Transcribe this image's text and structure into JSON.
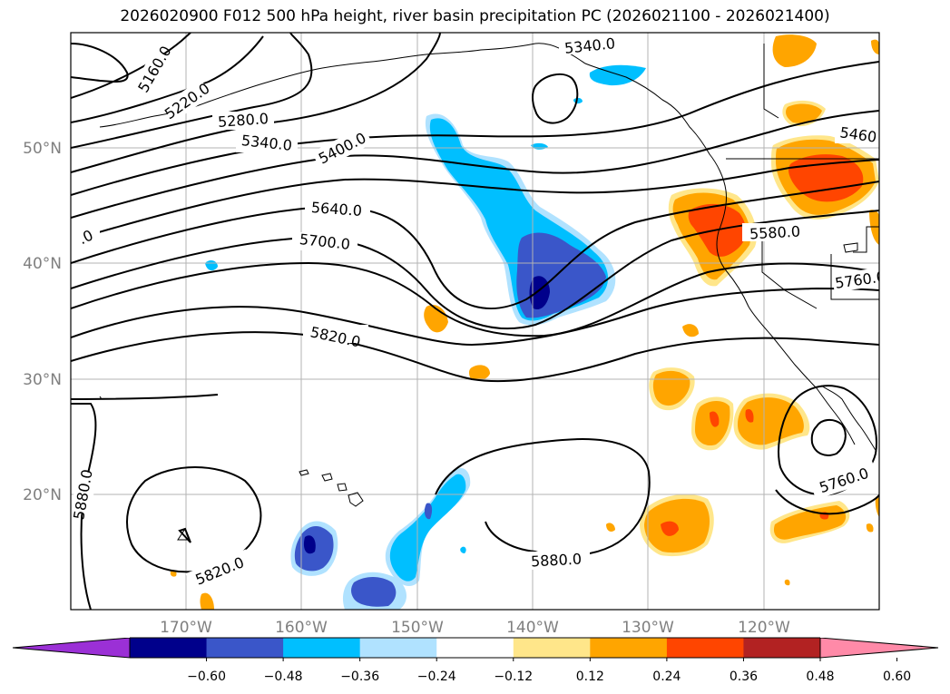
{
  "title": "2026020900 F012 500 hPa height, river basin precipitation PC (2026021100 - 2026021400)",
  "map": {
    "lon_range": [
      -180,
      -110
    ],
    "lat_range": [
      10,
      60
    ],
    "lat_ticks": [
      {
        "value": 20,
        "label": "20°N"
      },
      {
        "value": 30,
        "label": "30°N"
      },
      {
        "value": 40,
        "label": "40°N"
      },
      {
        "value": 50,
        "label": "50°N"
      }
    ],
    "lon_ticks": [
      {
        "value": -170,
        "label": "170°W"
      },
      {
        "value": -160,
        "label": "160°W"
      },
      {
        "value": -150,
        "label": "150°W"
      },
      {
        "value": -140,
        "label": "140°W"
      },
      {
        "value": -130,
        "label": "130°W"
      },
      {
        "value": -120,
        "label": "120°W"
      }
    ],
    "contour_labels": [
      {
        "text": "5160.0"
      },
      {
        "text": "5220.0"
      },
      {
        "text": "5280.0"
      },
      {
        "text": "5340.0"
      },
      {
        "text": "5400.0"
      },
      {
        "text": "5640.0"
      },
      {
        "text": "5700.0"
      },
      {
        "text": "5820.0"
      },
      {
        "text": "5820.0"
      },
      {
        "text": "5880.0"
      },
      {
        "text": "5880.0"
      },
      {
        "text": "5760.0"
      },
      {
        "text": "5760.0"
      },
      {
        "text": "5580.0"
      },
      {
        "text": "5460"
      },
      {
        "text": "5340.0"
      },
      {
        "text": ".0"
      }
    ]
  },
  "colorbar": {
    "colors": [
      "#9b30d6",
      "#00008b",
      "#3a56c9",
      "#00bfff",
      "#b0e2ff",
      "#ffffff",
      "#ffe68a",
      "#ffa500",
      "#ff4500",
      "#b22222",
      "#ff8aa8"
    ],
    "tick_labels": [
      "−0.60",
      "−0.48",
      "−0.36",
      "−0.24",
      "−0.12",
      "0.12",
      "0.24",
      "0.36",
      "0.48",
      "0.60"
    ]
  }
}
